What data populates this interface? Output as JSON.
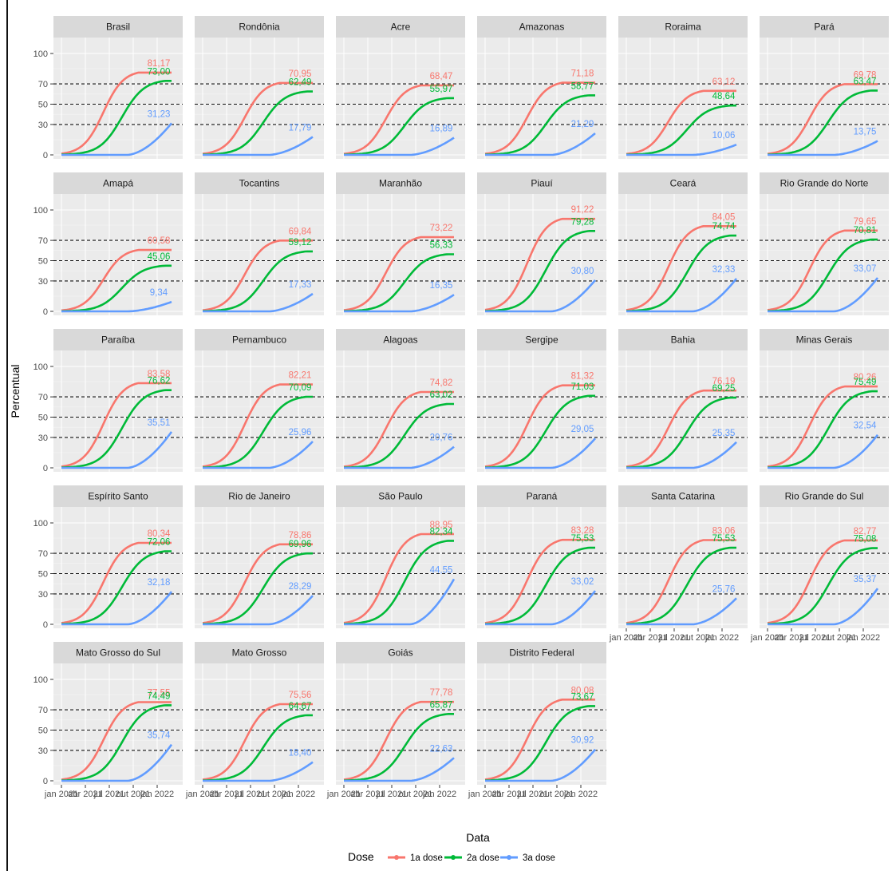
{
  "chart_data": {
    "type": "line",
    "xlabel": "Data",
    "ylabel": "Percentual",
    "x_range": [
      "2021-01-01",
      "2022-03-01"
    ],
    "ylim": [
      0,
      100
    ],
    "y_ticks": [
      0,
      30,
      50,
      70,
      100
    ],
    "reference_lines": [
      30,
      50,
      70
    ],
    "x_tick_labels": [
      "jan 2021",
      "abr 2021",
      "jul 2021",
      "out 2021",
      "jan 2022"
    ],
    "legend": {
      "title": "Dose",
      "placement": "bottom",
      "entries": [
        {
          "label": "1a dose",
          "color": "#f8766d"
        },
        {
          "label": "2a dose",
          "color": "#00ba38"
        },
        {
          "label": "3a dose",
          "color": "#619cff"
        }
      ]
    },
    "panels": [
      {
        "name": "Brasil",
        "final": [
          81.17,
          73.0,
          31.23
        ]
      },
      {
        "name": "Rondônia",
        "final": [
          70.95,
          62.49,
          17.79
        ]
      },
      {
        "name": "Acre",
        "final": [
          68.47,
          55.97,
          16.89
        ]
      },
      {
        "name": "Amazonas",
        "final": [
          71.18,
          58.77,
          21.29
        ]
      },
      {
        "name": "Roraima",
        "final": [
          63.12,
          48.64,
          10.06
        ]
      },
      {
        "name": "Pará",
        "final": [
          69.78,
          63.47,
          13.75
        ]
      },
      {
        "name": "Amapá",
        "final": [
          60.58,
          45.06,
          9.34
        ]
      },
      {
        "name": "Tocantins",
        "final": [
          69.84,
          59.12,
          17.33
        ]
      },
      {
        "name": "Maranhão",
        "final": [
          73.22,
          56.33,
          16.35
        ]
      },
      {
        "name": "Piauí",
        "final": [
          91.22,
          79.28,
          30.8
        ]
      },
      {
        "name": "Ceará",
        "final": [
          84.05,
          74.74,
          32.33
        ]
      },
      {
        "name": "Rio Grande do Norte",
        "final": [
          79.65,
          70.81,
          33.07
        ]
      },
      {
        "name": "Paraíba",
        "final": [
          83.58,
          76.62,
          35.51
        ]
      },
      {
        "name": "Pernambuco",
        "final": [
          82.21,
          70.09,
          25.96
        ]
      },
      {
        "name": "Alagoas",
        "final": [
          74.82,
          63.02,
          20.76
        ]
      },
      {
        "name": "Sergipe",
        "final": [
          81.32,
          71.03,
          29.05
        ]
      },
      {
        "name": "Bahia",
        "final": [
          76.19,
          69.25,
          25.35
        ]
      },
      {
        "name": "Minas Gerais",
        "final": [
          80.26,
          75.49,
          32.54
        ]
      },
      {
        "name": "Espírito Santo",
        "final": [
          80.34,
          72.06,
          32.18
        ]
      },
      {
        "name": "Rio de Janeiro",
        "final": [
          78.86,
          69.96,
          28.29
        ]
      },
      {
        "name": "São Paulo",
        "final": [
          88.95,
          82.34,
          44.55
        ]
      },
      {
        "name": "Paraná",
        "final": [
          83.28,
          75.53,
          33.02
        ]
      },
      {
        "name": "Santa Catarina",
        "final": [
          83.06,
          75.53,
          25.76
        ]
      },
      {
        "name": "Rio Grande do Sul",
        "final": [
          82.77,
          75.08,
          35.37
        ]
      },
      {
        "name": "Mato Grosso do Sul",
        "final": [
          77.55,
          74.49,
          35.74
        ]
      },
      {
        "name": "Mato Grosso",
        "final": [
          75.56,
          64.67,
          18.4
        ]
      },
      {
        "name": "Goiás",
        "final": [
          77.78,
          65.87,
          22.63
        ]
      },
      {
        "name": "Distrito Federal",
        "final": [
          80.08,
          73.67,
          30.92
        ]
      }
    ]
  }
}
